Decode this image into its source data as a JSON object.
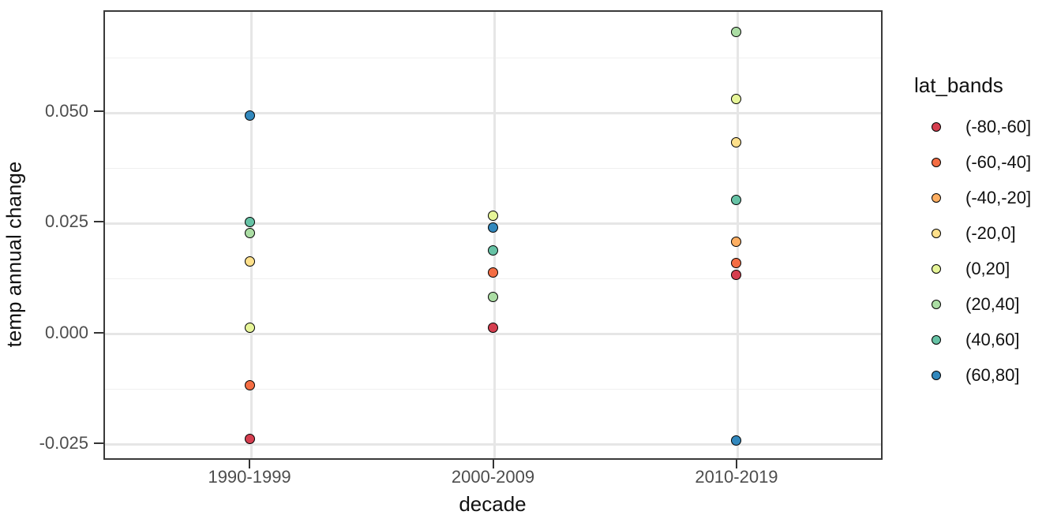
{
  "chart_data": {
    "type": "scatter",
    "title": "",
    "xlabel": "decade",
    "ylabel": "temp annual change",
    "categories": [
      "1990-1999",
      "2000-2009",
      "2010-2019"
    ],
    "y_axis": {
      "tick_values": [
        -0.025,
        0.0,
        0.025,
        0.05
      ],
      "tick_labels": [
        "-0.025",
        "0.000",
        "0.025",
        "0.050"
      ],
      "minor_tick_values": [
        -0.0125,
        0.0125,
        0.0375,
        0.0625
      ],
      "domain": [
        -0.0288,
        0.0729
      ],
      "grid": true
    },
    "legend": {
      "title": "lat_bands",
      "position": "right"
    },
    "series": [
      {
        "name": "(-80,-60]",
        "color": "#d53e4f",
        "points": [
          {
            "x": "1990-1999",
            "y": -0.024
          },
          {
            "x": "2000-2009",
            "y": 0.001
          },
          {
            "x": "2010-2019",
            "y": 0.013
          }
        ]
      },
      {
        "name": "(-60,-40]",
        "color": "#f46d43",
        "points": [
          {
            "x": "1990-1999",
            "y": -0.012
          },
          {
            "x": "2000-2009",
            "y": 0.0135
          },
          {
            "x": "2010-2019",
            "y": 0.0158
          }
        ]
      },
      {
        "name": "(-40,-20]",
        "color": "#fdae61",
        "points": [
          {
            "x": "2010-2019",
            "y": 0.0205
          }
        ]
      },
      {
        "name": "(-20,0]",
        "color": "#fee08b",
        "points": [
          {
            "x": "1990-1999",
            "y": 0.016
          },
          {
            "x": "2010-2019",
            "y": 0.043
          }
        ]
      },
      {
        "name": "(0,20]",
        "color": "#e6f598",
        "points": [
          {
            "x": "1990-1999",
            "y": 0.001
          },
          {
            "x": "2000-2009",
            "y": 0.0265
          },
          {
            "x": "2010-2019",
            "y": 0.0528
          }
        ]
      },
      {
        "name": "(20,40]",
        "color": "#abdda4",
        "points": [
          {
            "x": "1990-1999",
            "y": 0.0225
          },
          {
            "x": "2000-2009",
            "y": 0.008
          },
          {
            "x": "2010-2019",
            "y": 0.068
          }
        ]
      },
      {
        "name": "(40,60]",
        "color": "#66c2a5",
        "points": [
          {
            "x": "1990-1999",
            "y": 0.025
          },
          {
            "x": "2000-2009",
            "y": 0.0185
          },
          {
            "x": "2010-2019",
            "y": 0.03
          }
        ]
      },
      {
        "name": "(60,80]",
        "color": "#3288bd",
        "points": [
          {
            "x": "1990-1999",
            "y": 0.049
          },
          {
            "x": "2000-2009",
            "y": 0.0238
          },
          {
            "x": "2010-2019",
            "y": -0.0245
          }
        ]
      }
    ],
    "style": {
      "panel_border_color": "#3a3a3a",
      "grid_major_color": "#e6e6e6",
      "grid_minor_color": "#f0f0f0",
      "tick_label_color": "#4d4d4d",
      "point_outline_color": "#000000"
    }
  }
}
